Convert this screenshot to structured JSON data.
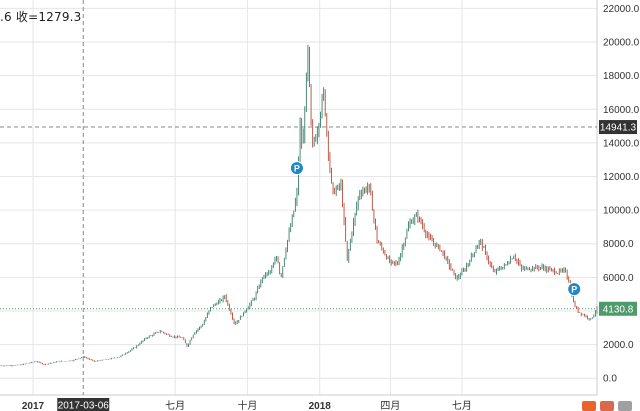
{
  "ohlc_label": ".6  收=1279.3",
  "price_tags": {
    "current_price": "4130.8",
    "crosshair_price": "14941.3"
  },
  "crosshair_date": "2017-03-06",
  "colors": {
    "up": "#3a7d6a",
    "down": "#b44b3a",
    "grid": "#e6e6e6",
    "current_tag": "#4e9a6b",
    "crosshair_tag": "#333333",
    "marker": "#1e88c8"
  },
  "markers": [
    {
      "label": "P",
      "date": "2017-12-03",
      "value": 12500
    },
    {
      "label": "P",
      "date": "2018-11-21",
      "value": 5300
    }
  ],
  "chart_data": {
    "type": "line",
    "x_type": "date",
    "y_ticks": [
      "22000.0",
      "20000.0",
      "18000.0",
      "16000.0",
      "14000.0",
      "12000.0",
      "10000.0",
      "8000.0",
      "6000.0",
      "4000.0",
      "2000.0",
      "0.0"
    ],
    "x_ticks": [
      {
        "label": "2017",
        "date": "2017-01-01",
        "bold": true
      },
      {
        "label": "七月",
        "date": "2017-07-01",
        "bold": false
      },
      {
        "label": "十月",
        "date": "2017-10-01",
        "bold": false
      },
      {
        "label": "2018",
        "date": "2018-01-01",
        "bold": true
      },
      {
        "label": "四月",
        "date": "2018-04-01",
        "bold": false
      },
      {
        "label": "七月",
        "date": "2018-07-01",
        "bold": false
      }
    ],
    "ylim": [
      -1000,
      22500
    ],
    "xlim": [
      "2016-11-20",
      "2018-12-20"
    ],
    "grid": true,
    "crosshair": {
      "date": "2017-03-06",
      "value": 14941.3
    },
    "current_value": 4130.8,
    "series": [
      {
        "points": [
          [
            "2016-11-20",
            740
          ],
          [
            "2016-12-15",
            780
          ],
          [
            "2017-01-05",
            1000
          ],
          [
            "2017-01-15",
            820
          ],
          [
            "2017-02-01",
            980
          ],
          [
            "2017-02-20",
            1050
          ],
          [
            "2017-03-06",
            1279
          ],
          [
            "2017-03-20",
            1000
          ],
          [
            "2017-04-01",
            1080
          ],
          [
            "2017-04-20",
            1250
          ],
          [
            "2017-05-10",
            1800
          ],
          [
            "2017-05-25",
            2400
          ],
          [
            "2017-06-12",
            2800
          ],
          [
            "2017-06-25",
            2500
          ],
          [
            "2017-07-10",
            2400
          ],
          [
            "2017-07-16",
            1900
          ],
          [
            "2017-07-25",
            2700
          ],
          [
            "2017-08-05",
            3200
          ],
          [
            "2017-08-15",
            4200
          ],
          [
            "2017-08-30",
            4700
          ],
          [
            "2017-09-02",
            4900
          ],
          [
            "2017-09-15",
            3200
          ],
          [
            "2017-09-25",
            3800
          ],
          [
            "2017-10-10",
            4800
          ],
          [
            "2017-10-20",
            6000
          ],
          [
            "2017-10-31",
            6400
          ],
          [
            "2017-11-08",
            7300
          ],
          [
            "2017-11-12",
            5900
          ],
          [
            "2017-11-20",
            8000
          ],
          [
            "2017-11-28",
            9700
          ],
          [
            "2017-12-03",
            11000
          ],
          [
            "2017-12-07",
            15000
          ],
          [
            "2017-12-10",
            13500
          ],
          [
            "2017-12-17",
            19500
          ],
          [
            "2017-12-22",
            13800
          ],
          [
            "2017-12-28",
            14500
          ],
          [
            "2018-01-06",
            17000
          ],
          [
            "2018-01-12",
            13500
          ],
          [
            "2018-01-17",
            11000
          ],
          [
            "2018-01-28",
            11500
          ],
          [
            "2018-02-05",
            7000
          ],
          [
            "2018-02-10",
            8500
          ],
          [
            "2018-02-20",
            11000
          ],
          [
            "2018-03-05",
            11400
          ],
          [
            "2018-03-15",
            8200
          ],
          [
            "2018-03-31",
            6900
          ],
          [
            "2018-04-10",
            6800
          ],
          [
            "2018-04-25",
            9200
          ],
          [
            "2018-05-05",
            9700
          ],
          [
            "2018-05-20",
            8300
          ],
          [
            "2018-06-05",
            7600
          ],
          [
            "2018-06-24",
            5900
          ],
          [
            "2018-07-05",
            6500
          ],
          [
            "2018-07-24",
            8200
          ],
          [
            "2018-08-10",
            6300
          ],
          [
            "2018-08-25",
            6700
          ],
          [
            "2018-09-05",
            7300
          ],
          [
            "2018-09-15",
            6500
          ],
          [
            "2018-10-10",
            6600
          ],
          [
            "2018-10-31",
            6300
          ],
          [
            "2018-11-10",
            6400
          ],
          [
            "2018-11-15",
            5600
          ],
          [
            "2018-11-20",
            4500
          ],
          [
            "2018-11-25",
            4000
          ],
          [
            "2018-12-05",
            3700
          ],
          [
            "2018-12-12",
            3500
          ],
          [
            "2018-12-20",
            4130
          ]
        ]
      }
    ]
  }
}
